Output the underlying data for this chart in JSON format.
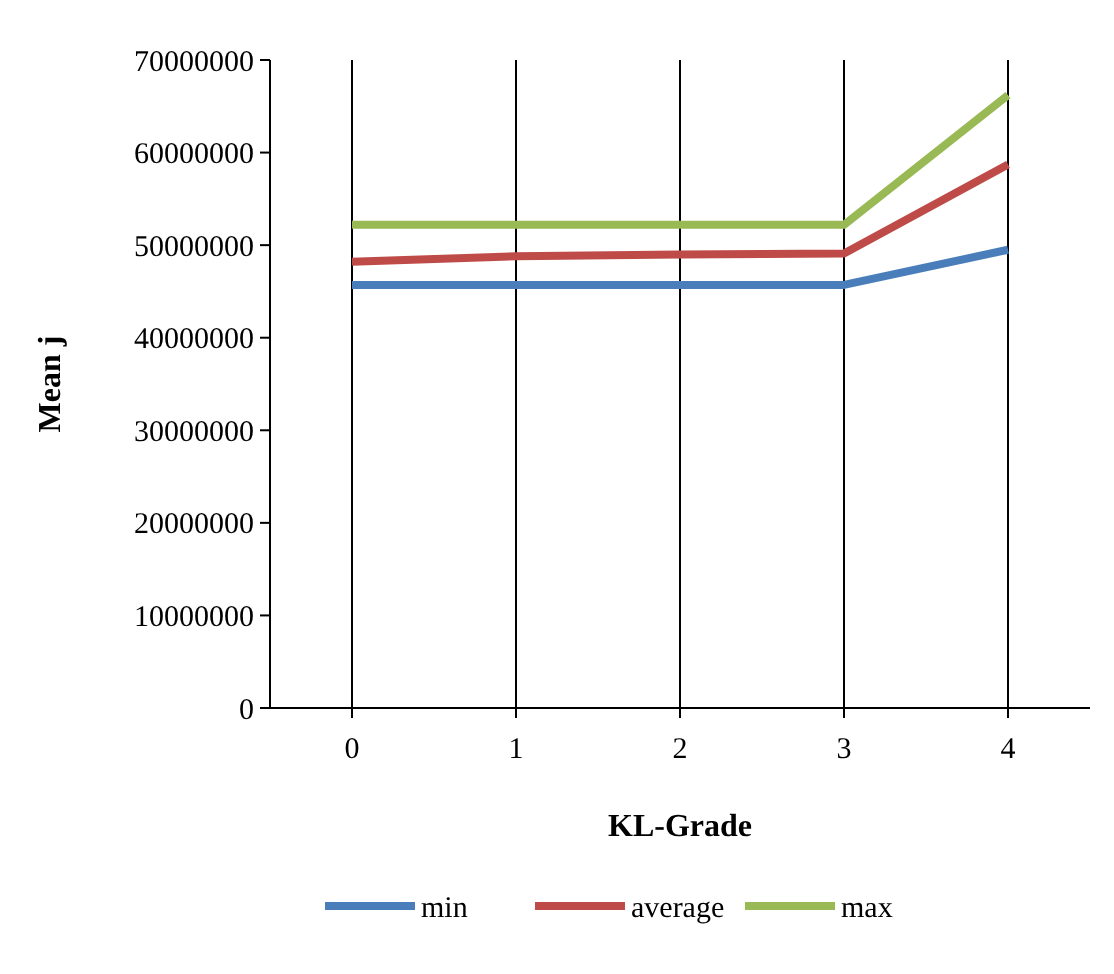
{
  "chart_data": {
    "type": "line",
    "xlabel": "KL-Grade",
    "ylabel": "Mean j",
    "categories": [
      "0",
      "1",
      "2",
      "3",
      "4"
    ],
    "series": [
      {
        "name": "min",
        "color": "#4a7ebb",
        "values": [
          45700000,
          45700000,
          45700000,
          45700000,
          49500000
        ]
      },
      {
        "name": "average",
        "color": "#be4b48",
        "values": [
          48200000,
          48800000,
          49000000,
          49100000,
          58700000
        ]
      },
      {
        "name": "max",
        "color": "#98b954",
        "values": [
          52200000,
          52200000,
          52200000,
          52200000,
          66200000
        ]
      }
    ],
    "ylim": [
      0,
      70000000
    ],
    "yticks": [
      0,
      10000000,
      20000000,
      30000000,
      40000000,
      50000000,
      60000000,
      70000000
    ],
    "grid": "x",
    "legend": "bottom",
    "marker": "none",
    "line_style": "solid"
  }
}
